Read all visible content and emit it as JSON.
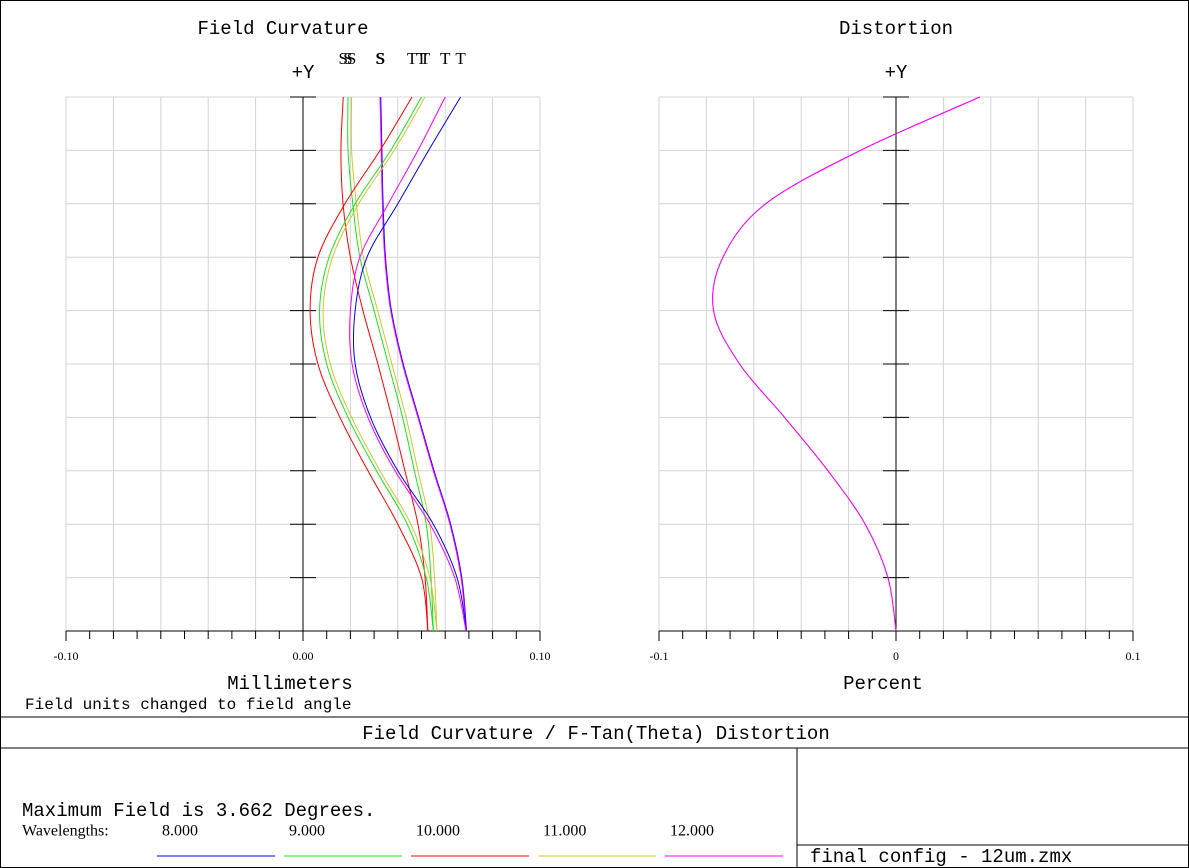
{
  "chart_data": [
    {
      "type": "line",
      "title": "Field Curvature",
      "y_axis_label": "+Y",
      "xlabel": "Millimeters",
      "note": "Field units changed to field angle",
      "xlim": [
        -0.1,
        0.1
      ],
      "xticks": [
        {
          "value": -0.1,
          "label": "-0.10"
        },
        {
          "value": 0,
          "label": "0.00"
        },
        {
          "value": 0.1,
          "label": "0.10"
        }
      ],
      "xgrid": [
        -0.1,
        -0.08,
        -0.06,
        -0.04,
        -0.02,
        0,
        0.02,
        0.04,
        0.06,
        0.08,
        0.1
      ],
      "xminor": [
        -0.1,
        -0.09,
        -0.08,
        -0.07,
        -0.06,
        -0.05,
        -0.04,
        -0.03,
        -0.02,
        -0.01,
        0,
        0.01,
        0.02,
        0.03,
        0.04,
        0.05,
        0.06,
        0.07,
        0.08,
        0.09,
        0.1
      ],
      "ylim": [
        0,
        3.662
      ],
      "ygrid": [
        0,
        0.3662,
        0.7324,
        1.0986,
        1.4648,
        1.831,
        2.1972,
        2.5634,
        2.9296,
        3.2958,
        3.662
      ],
      "y": [
        0,
        0.3662,
        0.7324,
        1.0986,
        1.4648,
        1.831,
        2.1972,
        2.5634,
        2.9296,
        3.2958,
        3.662
      ],
      "series": [
        {
          "name": "S",
          "color": "#c8c832",
          "values": [
            0.0565,
            0.0555,
            0.0535,
            0.0485,
            0.0435,
            0.0375,
            0.0315,
            0.0255,
            0.0225,
            0.0205,
            0.0205
          ]
        },
        {
          "name": "S",
          "color": "#22dd22",
          "values": [
            0.055,
            0.054,
            0.052,
            0.047,
            0.042,
            0.036,
            0.03,
            0.024,
            0.021,
            0.019,
            0.019
          ]
        },
        {
          "name": "S",
          "color": "#ff0000",
          "values": [
            0.0527,
            0.0515,
            0.0485,
            0.043,
            0.0375,
            0.0316,
            0.0253,
            0.02,
            0.0169,
            0.016,
            0.017
          ]
        },
        {
          "name": "S",
          "color": "#0000ff",
          "values": [
            0.069,
            0.067,
            0.0623,
            0.0553,
            0.0488,
            0.0423,
            0.0373,
            0.0348,
            0.0338,
            0.0333,
            0.0328
          ]
        },
        {
          "name": "S",
          "color": "#ff00ff",
          "values": [
            0.0688,
            0.0667,
            0.062,
            0.055,
            0.0485,
            0.042,
            0.037,
            0.0345,
            0.0335,
            0.033,
            0.0325
          ]
        },
        {
          "name": "T",
          "color": "#c8c832",
          "values": [
            0.0565,
            0.0535,
            0.0455,
            0.0325,
            0.0205,
            0.0115,
            0.0085,
            0.0125,
            0.0235,
            0.0385,
            0.0515
          ]
        },
        {
          "name": "T",
          "color": "#22dd22",
          "values": [
            0.055,
            0.052,
            0.044,
            0.031,
            0.019,
            0.01,
            0.007,
            0.011,
            0.022,
            0.037,
            0.05
          ]
        },
        {
          "name": "T",
          "color": "#ff0000",
          "values": [
            0.0527,
            0.05,
            0.04,
            0.0274,
            0.0156,
            0.0063,
            0.003,
            0.0063,
            0.0177,
            0.0325,
            0.046
          ]
        },
        {
          "name": "T",
          "color": "#0000ff",
          "values": [
            0.069,
            0.065,
            0.055,
            0.04,
            0.0285,
            0.022,
            0.022,
            0.027,
            0.04,
            0.053,
            0.0665
          ]
        },
        {
          "name": "T",
          "color": "#ff00ff",
          "values": [
            0.0688,
            0.064,
            0.0536,
            0.0388,
            0.0274,
            0.0207,
            0.02,
            0.024,
            0.036,
            0.0485,
            0.06
          ]
        }
      ]
    },
    {
      "type": "line",
      "title": "Distortion",
      "y_axis_label": "+Y",
      "xlabel": "Percent",
      "xlim": [
        -0.1,
        0.1
      ],
      "xticks": [
        {
          "value": -0.1,
          "label": "-0.1"
        },
        0,
        {
          "value": 0.1,
          "label": "0.1"
        }
      ],
      "xgrid": [
        -0.1,
        -0.08,
        -0.06,
        -0.04,
        -0.02,
        0,
        0.02,
        0.04,
        0.06,
        0.08,
        0.1
      ],
      "xminor": [
        -0.1,
        -0.09,
        -0.08,
        -0.07,
        -0.06,
        -0.05,
        -0.04,
        -0.03,
        -0.02,
        -0.01,
        0,
        0.01,
        0.02,
        0.03,
        0.04,
        0.05,
        0.06,
        0.07,
        0.08,
        0.09,
        0.1
      ],
      "ylim": [
        0,
        3.662
      ],
      "ygrid": [
        0,
        0.3662,
        0.7324,
        1.0986,
        1.4648,
        1.831,
        2.1972,
        2.5634,
        2.9296,
        3.2958,
        3.662
      ],
      "y": [
        0,
        0.3662,
        0.7324,
        1.0986,
        1.4648,
        1.831,
        2.1972,
        2.5634,
        2.9296,
        3.2958,
        3.662
      ],
      "series": [
        {
          "color": "#808080",
          "values": [
            0,
            -0.0034,
            -0.013,
            -0.0287,
            -0.047,
            -0.066,
            -0.077,
            -0.073,
            -0.055,
            -0.015,
            0.0354
          ]
        },
        {
          "color": "#ff00ff",
          "values": [
            0,
            -0.0034,
            -0.013,
            -0.0287,
            -0.047,
            -0.066,
            -0.077,
            -0.073,
            -0.055,
            -0.015,
            0.0354
          ]
        }
      ]
    }
  ],
  "footer": {
    "title": "Field Curvature / F-Tan(Theta) Distortion",
    "max_field": "Maximum Field is 3.662 Degrees.",
    "wavelengths_label": "Wavelengths:",
    "wavelengths": [
      {
        "label": "8.000",
        "color": "#0000ff"
      },
      {
        "label": "9.000",
        "color": "#22dd22"
      },
      {
        "label": "10.000",
        "color": "#ff0000"
      },
      {
        "label": "11.000",
        "color": "#c8c832"
      },
      {
        "label": "12.000",
        "color": "#ff00ff"
      }
    ],
    "file": "final config - 12um.zmx"
  }
}
